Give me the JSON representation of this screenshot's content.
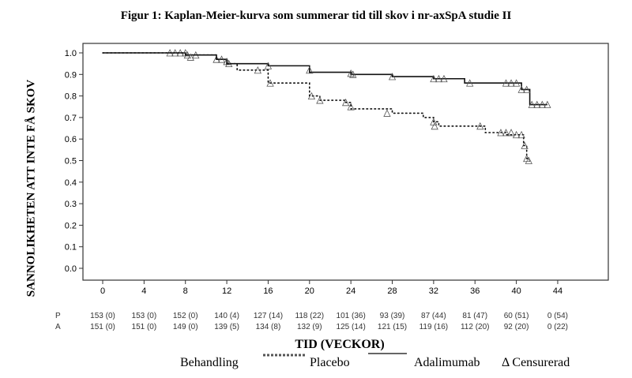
{
  "chart_data": {
    "type": "line",
    "title": "Figur 1: Kaplan-Meier-kurva som summerar tid till skov i  nr-axSpA studie II",
    "xlabel": "TID (VECKOR)",
    "ylabel": "SANNOLIKHETEN ATT INTE FÅ SKOV",
    "xlim": [
      -2,
      49
    ],
    "ylim": [
      -0.05,
      1.05
    ],
    "xticks": [
      "0",
      "4",
      "8",
      "12",
      "16",
      "20",
      "24",
      "28",
      "32",
      "36",
      "40",
      "44"
    ],
    "yticks": [
      "0.0",
      "0.1",
      "0.2",
      "0.3",
      "0.4",
      "0.5",
      "0.6",
      "0.7",
      "0.8",
      "0.9",
      "1.0"
    ],
    "series": [
      {
        "name": "Placebo",
        "style": "dotted",
        "steps": [
          [
            0,
            1.0
          ],
          [
            8,
            0.99
          ],
          [
            11,
            0.97
          ],
          [
            12,
            0.95
          ],
          [
            13,
            0.92
          ],
          [
            16,
            0.86
          ],
          [
            20,
            0.8
          ],
          [
            21,
            0.78
          ],
          [
            23.5,
            0.77
          ],
          [
            24,
            0.74
          ],
          [
            28,
            0.72
          ],
          [
            31,
            0.7
          ],
          [
            32,
            0.68
          ],
          [
            32.5,
            0.66
          ],
          [
            37,
            0.63
          ],
          [
            39,
            0.62
          ],
          [
            40.7,
            0.57
          ],
          [
            41,
            0.51
          ],
          [
            41.3,
            0.51
          ]
        ],
        "censored": [
          [
            6.5,
            1.0
          ],
          [
            7,
            1.0
          ],
          [
            7.5,
            1.0
          ],
          [
            8.2,
            0.99
          ],
          [
            9,
            0.99
          ],
          [
            11,
            0.97
          ],
          [
            12.2,
            0.95
          ],
          [
            15,
            0.92
          ],
          [
            16.2,
            0.86
          ],
          [
            20.2,
            0.8
          ],
          [
            21,
            0.78
          ],
          [
            23.5,
            0.77
          ],
          [
            24,
            0.75
          ],
          [
            27.5,
            0.72
          ],
          [
            32,
            0.68
          ],
          [
            32.1,
            0.66
          ],
          [
            36.5,
            0.66
          ],
          [
            38.5,
            0.63
          ],
          [
            39,
            0.63
          ],
          [
            39.5,
            0.63
          ],
          [
            40,
            0.62
          ],
          [
            40.5,
            0.62
          ],
          [
            40.8,
            0.57
          ],
          [
            41,
            0.51
          ],
          [
            41.2,
            0.5
          ]
        ]
      },
      {
        "name": "Adalimumab",
        "style": "solid",
        "steps": [
          [
            0,
            1.0
          ],
          [
            8,
            0.99
          ],
          [
            11,
            0.97
          ],
          [
            12,
            0.95
          ],
          [
            16,
            0.94
          ],
          [
            20,
            0.91
          ],
          [
            24,
            0.9
          ],
          [
            28,
            0.89
          ],
          [
            32,
            0.88
          ],
          [
            35,
            0.86
          ],
          [
            40.5,
            0.83
          ],
          [
            41.3,
            0.76
          ],
          [
            43,
            0.76
          ]
        ],
        "censored": [
          [
            8,
            1.0
          ],
          [
            8.5,
            0.98
          ],
          [
            11.5,
            0.97
          ],
          [
            12,
            0.96
          ],
          [
            16,
            0.94
          ],
          [
            20,
            0.92
          ],
          [
            24,
            0.905
          ],
          [
            24.2,
            0.9
          ],
          [
            28,
            0.89
          ],
          [
            32,
            0.88
          ],
          [
            32.5,
            0.88
          ],
          [
            33,
            0.88
          ],
          [
            35.5,
            0.86
          ],
          [
            39,
            0.86
          ],
          [
            39.5,
            0.86
          ],
          [
            40,
            0.86
          ],
          [
            40.5,
            0.83
          ],
          [
            41,
            0.83
          ],
          [
            41.5,
            0.76
          ],
          [
            42,
            0.76
          ],
          [
            42.5,
            0.76
          ],
          [
            43,
            0.76
          ]
        ]
      }
    ],
    "risk_table": {
      "rows": [
        {
          "label": "P",
          "values": [
            "153 (0)",
            "153 (0)",
            "152 (0)",
            "140 (4)",
            "127 (14)",
            "118 (22)",
            "101 (36)",
            "93 (39)",
            "87 (44)",
            "81 (47)",
            "60 (51)",
            "0 (54)"
          ]
        },
        {
          "label": "A",
          "values": [
            "151 (0)",
            "151 (0)",
            "149 (0)",
            "139 (5)",
            "134 (8)",
            "132 (9)",
            "125 (14)",
            "121 (15)",
            "119 (16)",
            "112 (20)",
            "92 (20)",
            "0 (22)"
          ]
        }
      ]
    },
    "legend": {
      "heading": "Behandling",
      "placebo": "Placebo",
      "adalimumab": "Adalimumab",
      "censored": "Δ Censurerad"
    },
    "grid": false,
    "legend_placement": "bottom"
  }
}
